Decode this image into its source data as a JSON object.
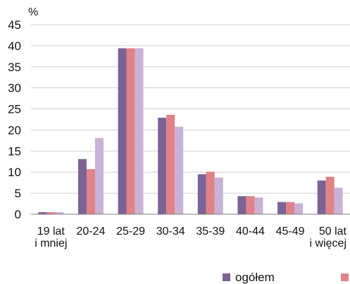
{
  "chart_data": {
    "type": "bar",
    "title": "",
    "xlabel": "",
    "ylabel": "%",
    "ylim": [
      0,
      45
    ],
    "yticks": [
      0,
      5,
      10,
      15,
      20,
      25,
      30,
      35,
      40,
      45
    ],
    "grid": true,
    "legend_position": "bottom-right",
    "categories": [
      [
        "19 lat",
        "i mniej"
      ],
      [
        "20-24"
      ],
      [
        "25-29"
      ],
      [
        "30-34"
      ],
      [
        "35-39"
      ],
      [
        "40-44"
      ],
      [
        "45-49"
      ],
      [
        "50 lat",
        "i więcej"
      ]
    ],
    "series": [
      {
        "name": "ogółem",
        "color": "#7b6396",
        "values": [
          0.5,
          13.1,
          39.4,
          22.9,
          9.5,
          4.3,
          2.9,
          8.0
        ]
      },
      {
        "color": "#e08287",
        "values": [
          0.5,
          10.7,
          39.4,
          23.6,
          10.1,
          4.3,
          2.9,
          8.9
        ]
      },
      {
        "color": "#c9b2d5",
        "values": [
          0.5,
          18.1,
          39.4,
          20.8,
          8.7,
          4.0,
          2.6,
          6.3
        ]
      }
    ]
  }
}
